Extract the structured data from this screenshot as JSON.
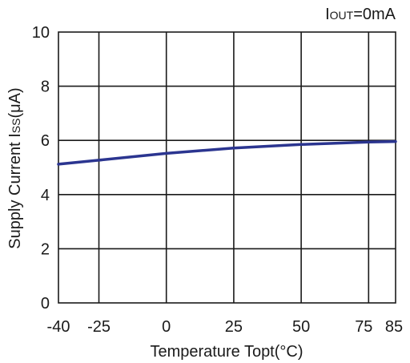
{
  "chart_data": {
    "type": "line",
    "title": "",
    "annotation_main": "I",
    "annotation_sub": "OUT",
    "annotation_tail": "=0mA",
    "xlabel": "Temperature Topt(°C)",
    "ylabel_main": "Supply Current I",
    "ylabel_sub": "SS",
    "ylabel_tail": "(μA)",
    "xlim": [
      -40,
      85
    ],
    "ylim": [
      0,
      10
    ],
    "x_ticks": [
      -40,
      -25,
      0,
      25,
      50,
      75,
      85
    ],
    "x_tick_labels": [
      "-40",
      "-25",
      "0",
      "25",
      "50",
      "75",
      "85"
    ],
    "y_ticks": [
      0,
      2,
      4,
      6,
      8,
      10
    ],
    "y_tick_labels": [
      "0",
      "2",
      "4",
      "6",
      "8",
      "10"
    ],
    "grid": true,
    "series_color": "#2b3590",
    "series": [
      {
        "x": [
          -40,
          -25,
          0,
          25,
          50,
          75,
          85
        ],
        "values": [
          5.12,
          5.27,
          5.52,
          5.72,
          5.85,
          5.94,
          5.96
        ]
      }
    ]
  }
}
